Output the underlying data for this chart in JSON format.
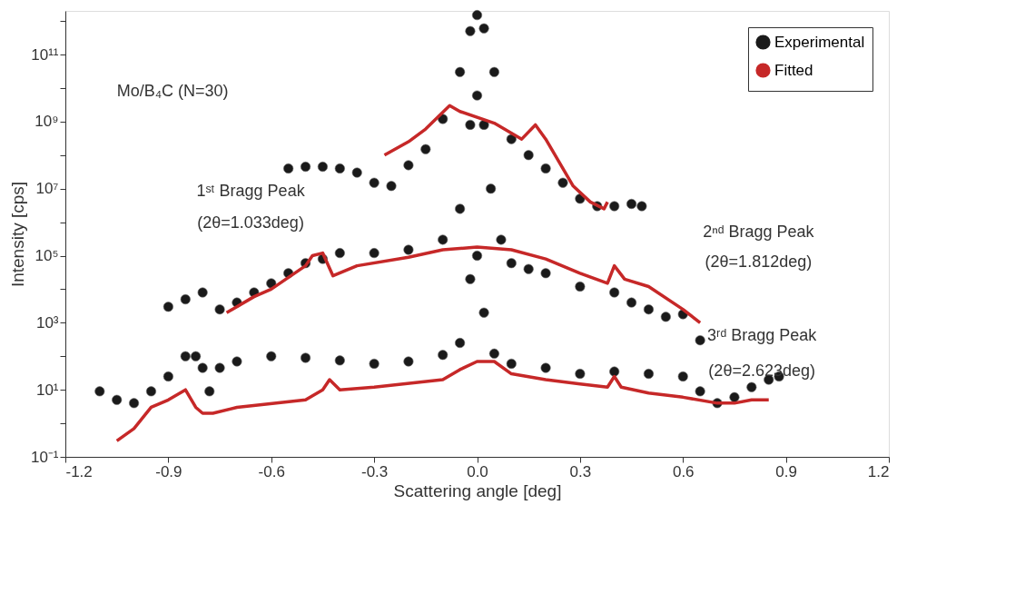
{
  "chart_data": {
    "type": "scatter",
    "xlabel": "Scattering angle [deg]",
    "ylabel": "Intensity [cps]",
    "xlim": [
      -1.2,
      1.2
    ],
    "xticks": [
      -1.2,
      -0.9,
      -0.6,
      -0.3,
      {
        "value": 0,
        "label": "0.0"
      },
      0.3,
      0.6,
      0.9,
      1.2
    ],
    "ylim": [
      0.1,
      2000000000000.0
    ],
    "log": true,
    "yticks": [
      {
        "value": 0.1,
        "label": "10⁻¹"
      },
      {
        "value": 1,
        "label": null
      },
      {
        "value": 10,
        "label": "10¹"
      },
      {
        "value": 100,
        "label": null
      },
      {
        "value": 1000,
        "label": "10³"
      },
      {
        "value": 10000,
        "label": null
      },
      {
        "value": 100000,
        "label": "10⁵"
      },
      {
        "value": 1000000,
        "label": null
      },
      {
        "value": 10000000,
        "label": "10⁷"
      },
      {
        "value": 100000000,
        "label": null
      },
      {
        "value": 1000000000,
        "label": "10⁹"
      },
      {
        "value": 10000000000,
        "label": null
      },
      {
        "value": 100000000000,
        "label": "10¹¹"
      },
      {
        "value": 1000000000000,
        "label": null
      }
    ],
    "grid": false,
    "legend": "top right",
    "annotations": [
      "Mo/B₄C (N=30)",
      "1ˢᵗ Bragg Peak",
      "(2θ=1.033deg)",
      "2ⁿᵈ Bragg Peak",
      "(2θ=1.812deg)",
      "3ʳᵈ Bragg Peak",
      "(2θ=2.623deg)"
    ],
    "series": [
      {
        "name": "Experimental",
        "marker": "circle",
        "color": "#1a1a1a",
        "x": [
          -0.55,
          -0.5,
          -0.45,
          -0.4,
          -0.35,
          -0.3,
          -0.25,
          -0.2,
          -0.15,
          -0.1,
          -0.05,
          -0.02,
          0,
          0.02,
          0.05,
          0.1,
          0.15,
          0.2,
          0.25,
          0.3,
          0.35,
          0.4,
          0.45,
          0.48
        ],
        "values": [
          40000000.0,
          45000000.0,
          45000000.0,
          40000000.0,
          30000000.0,
          15000000.0,
          12000000.0,
          50000000.0,
          150000000.0,
          1200000000.0,
          30000000000.0,
          500000000000.0,
          1500000000000.0,
          600000000000.0,
          30000000000.0,
          300000000.0,
          100000000.0,
          40000000.0,
          15000000.0,
          5000000.0,
          3000000.0,
          3000000.0,
          3500000.0,
          3000000.0
        ]
      },
      {
        "marker": "circle",
        "color": "#1a1a1a",
        "x": [
          -0.9,
          -0.85,
          -0.8,
          -0.75,
          -0.7,
          -0.65,
          -0.6,
          -0.55,
          -0.5,
          -0.45,
          -0.4,
          -0.3,
          -0.2,
          -0.1,
          -0.05,
          -0.02,
          0,
          0.02,
          0.04,
          0.07,
          0.1,
          0.15,
          0.2,
          0.3,
          0.4,
          0.45,
          0.5,
          0.55,
          0.6,
          0.65
        ],
        "values": [
          3000.0,
          5000.0,
          8000.0,
          2500.0,
          4000.0,
          8000.0,
          15000.0,
          30000.0,
          60000.0,
          80000.0,
          120000.0,
          120000.0,
          150000.0,
          300000.0,
          2500000.0,
          800000000.0,
          6000000000.0,
          800000000.0,
          10000000.0,
          300000.0,
          60000.0,
          40000.0,
          30000.0,
          12000.0,
          8000.0,
          4000.0,
          2500.0,
          1500.0,
          1800.0,
          300.0
        ]
      },
      {
        "marker": "circle",
        "color": "#1a1a1a",
        "x": [
          -1.1,
          -1.05,
          -1.0,
          -0.95,
          -0.9,
          -0.85,
          -0.82,
          -0.8,
          -0.78,
          -0.75,
          -0.7,
          -0.6,
          -0.5,
          -0.4,
          -0.3,
          -0.2,
          -0.1,
          -0.05,
          -0.02,
          0,
          0.02,
          0.05,
          0.1,
          0.2,
          0.3,
          0.4,
          0.5,
          0.6,
          0.65,
          0.7,
          0.75,
          0.8,
          0.85,
          0.88
        ],
        "values": [
          9,
          5,
          4,
          9,
          25,
          100,
          100,
          45,
          9,
          45,
          70,
          100,
          90,
          75,
          60,
          70,
          110,
          250,
          20000.0,
          100000.0,
          2000.0,
          120,
          60,
          45,
          30,
          35,
          30,
          25,
          9,
          4,
          6,
          12,
          20,
          25
        ]
      },
      {
        "name": "Fitted",
        "type": "line",
        "color": "#c62828",
        "x": [
          -0.27,
          -0.2,
          -0.15,
          -0.08,
          -0.05,
          0.05,
          0.13,
          0.17,
          0.2,
          0.28,
          0.33,
          0.37,
          0.38
        ],
        "values": [
          100000000.0,
          250000000.0,
          600000000.0,
          3000000000.0,
          2000000000.0,
          900000000.0,
          300000000.0,
          800000000.0,
          300000000.0,
          12000000.0,
          4000000.0,
          2500000.0,
          4000000.0
        ]
      },
      {
        "type": "line",
        "color": "#c62828",
        "x": [
          -0.73,
          -0.65,
          -0.6,
          -0.5,
          -0.48,
          -0.45,
          -0.42,
          -0.35,
          -0.2,
          -0.1,
          0,
          0.1,
          0.2,
          0.3,
          0.38,
          0.4,
          0.43,
          0.5,
          0.6,
          0.65
        ],
        "values": [
          2000.0,
          6000.0,
          10000.0,
          50000.0,
          100000.0,
          120000.0,
          25000.0,
          50000.0,
          90000.0,
          150000.0,
          180000.0,
          150000.0,
          80000.0,
          30000.0,
          15000.0,
          50000.0,
          20000.0,
          12000.0,
          2500.0,
          1000.0
        ]
      },
      {
        "type": "line",
        "color": "#c62828",
        "x": [
          -1.05,
          -1.0,
          -0.95,
          -0.9,
          -0.85,
          -0.82,
          -0.8,
          -0.77,
          -0.7,
          -0.5,
          -0.45,
          -0.43,
          -0.4,
          -0.3,
          -0.1,
          -0.05,
          0,
          0.05,
          0.1,
          0.2,
          0.3,
          0.38,
          0.4,
          0.42,
          0.5,
          0.6,
          0.7,
          0.75,
          0.8,
          0.85
        ],
        "values": [
          0.3,
          0.7,
          3,
          5,
          10,
          3,
          2,
          2,
          3,
          5,
          10,
          20,
          10,
          12,
          20,
          40,
          70,
          70,
          30,
          20,
          15,
          12,
          25,
          12,
          8,
          6,
          4,
          4,
          5,
          5
        ]
      }
    ]
  }
}
